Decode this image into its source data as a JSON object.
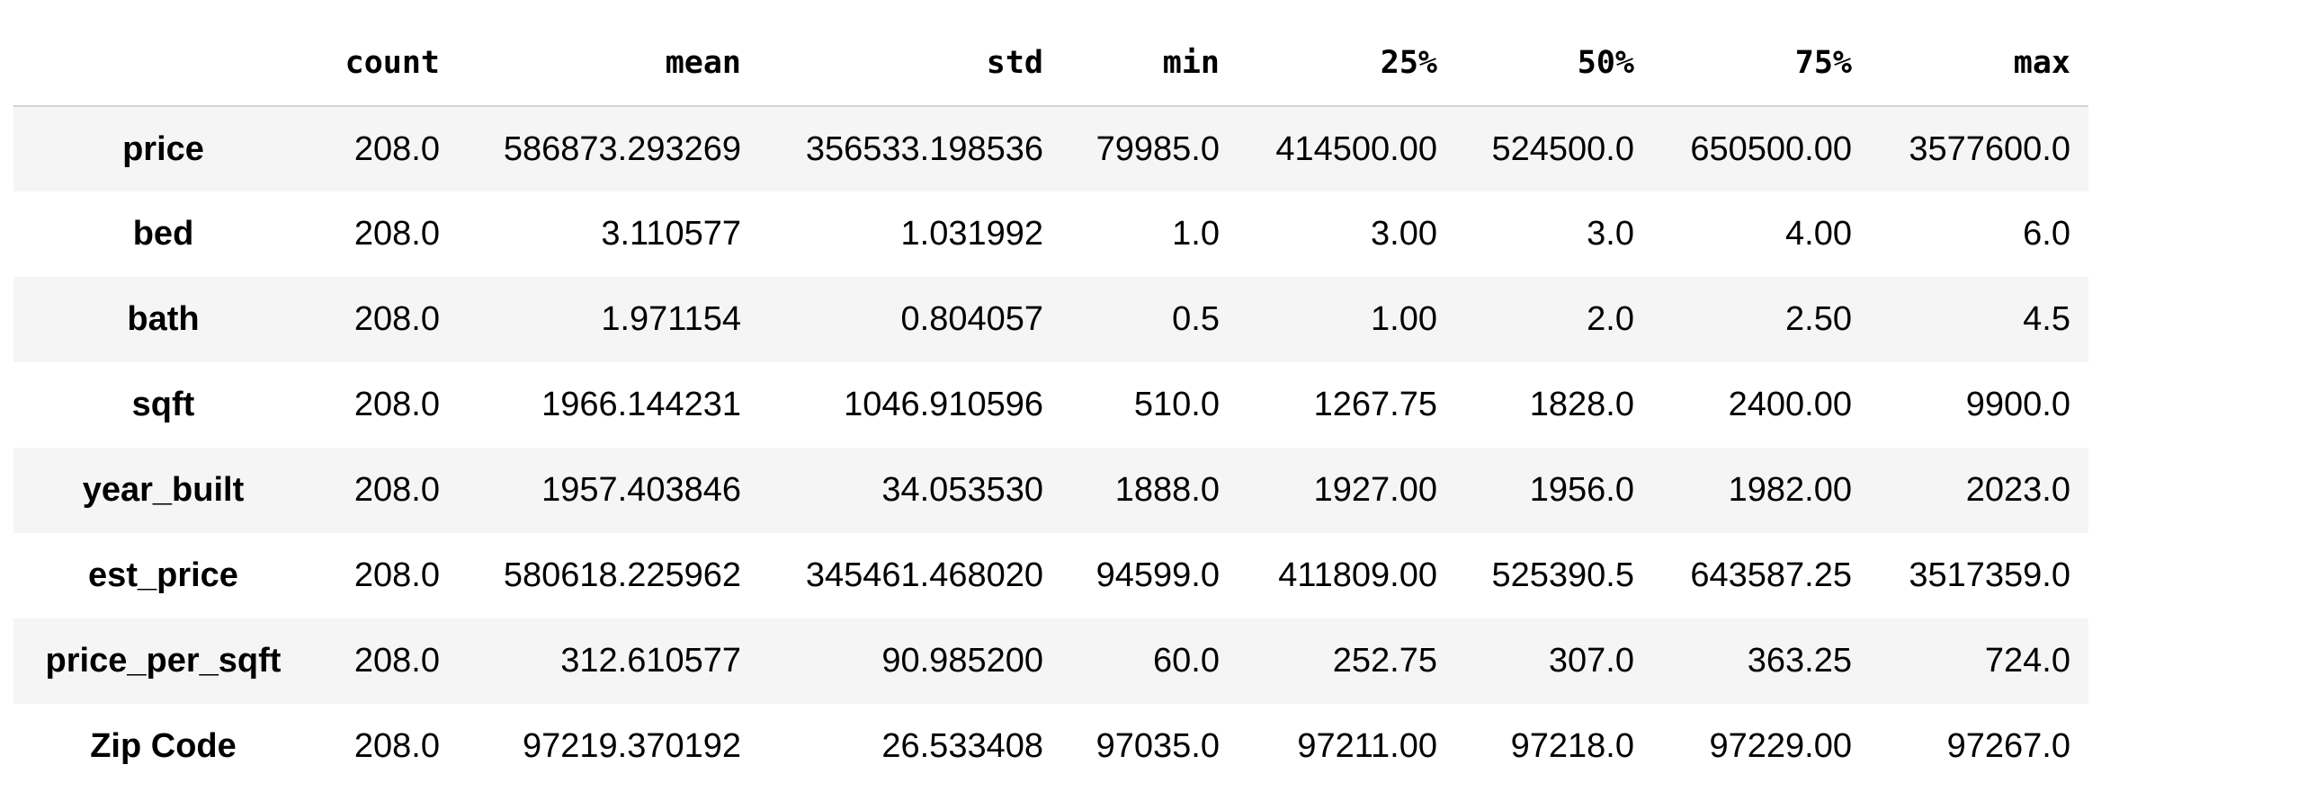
{
  "table": {
    "index_header": "",
    "columns": [
      "count",
      "mean",
      "std",
      "min",
      "25%",
      "50%",
      "75%",
      "max"
    ],
    "rows": [
      {
        "label": "price",
        "values": [
          "208.0",
          "586873.293269",
          "356533.198536",
          "79985.0",
          "414500.00",
          "524500.0",
          "650500.00",
          "3577600.0"
        ]
      },
      {
        "label": "bed",
        "values": [
          "208.0",
          "3.110577",
          "1.031992",
          "1.0",
          "3.00",
          "3.0",
          "4.00",
          "6.0"
        ]
      },
      {
        "label": "bath",
        "values": [
          "208.0",
          "1.971154",
          "0.804057",
          "0.5",
          "1.00",
          "2.0",
          "2.50",
          "4.5"
        ]
      },
      {
        "label": "sqft",
        "values": [
          "208.0",
          "1966.144231",
          "1046.910596",
          "510.0",
          "1267.75",
          "1828.0",
          "2400.00",
          "9900.0"
        ]
      },
      {
        "label": "year_built",
        "values": [
          "208.0",
          "1957.403846",
          "34.053530",
          "1888.0",
          "1927.00",
          "1956.0",
          "1982.00",
          "2023.0"
        ]
      },
      {
        "label": "est_price",
        "values": [
          "208.0",
          "580618.225962",
          "345461.468020",
          "94599.0",
          "411809.00",
          "525390.5",
          "643587.25",
          "3517359.0"
        ]
      },
      {
        "label": "price_per_sqft",
        "values": [
          "208.0",
          "312.610577",
          "90.985200",
          "60.0",
          "252.75",
          "307.0",
          "363.25",
          "724.0"
        ]
      },
      {
        "label": "Zip Code",
        "values": [
          "208.0",
          "97219.370192",
          "26.533408",
          "97035.0",
          "97211.00",
          "97218.0",
          "97229.00",
          "97267.0"
        ]
      }
    ]
  }
}
